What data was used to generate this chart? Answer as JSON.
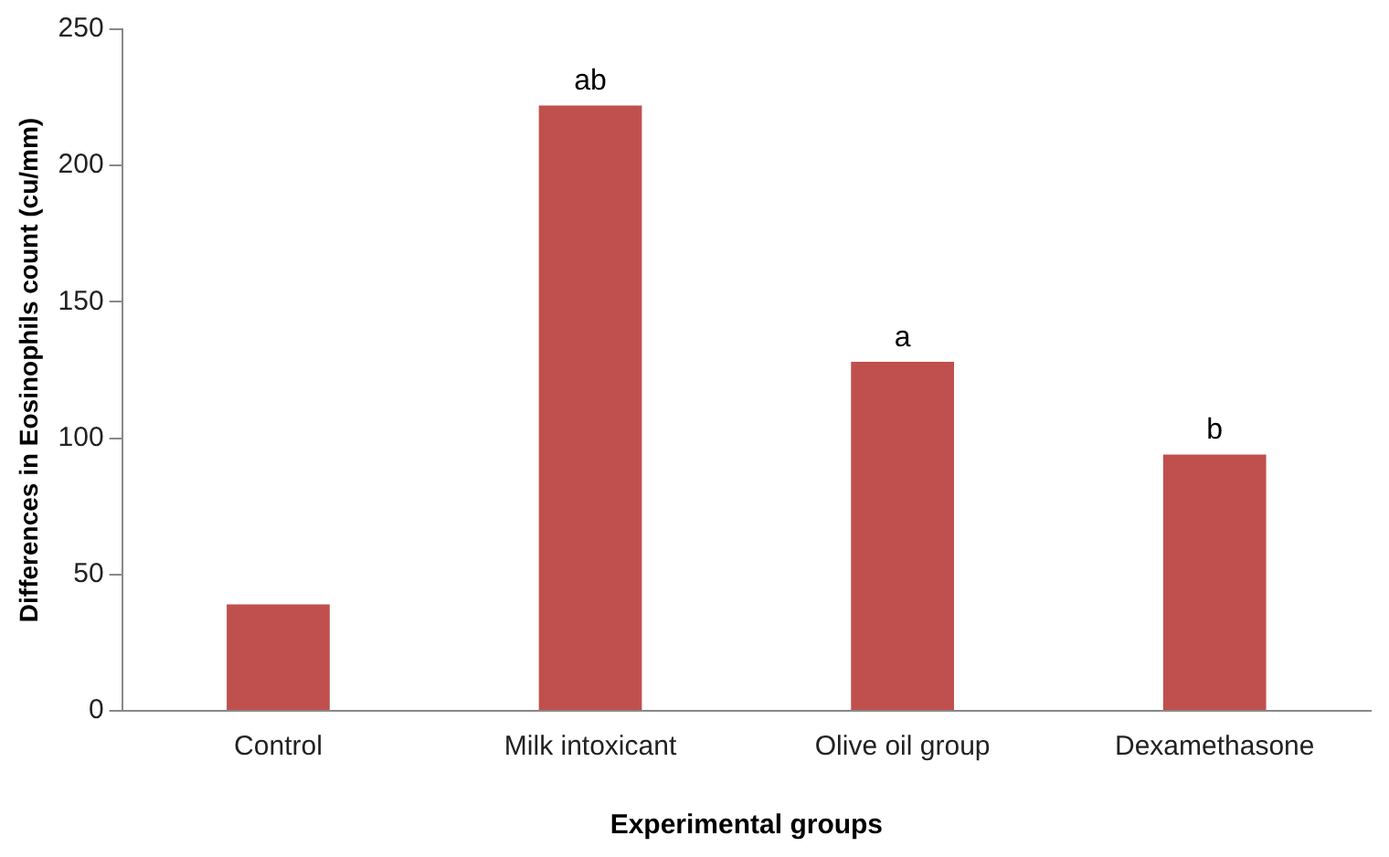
{
  "chart_data": {
    "type": "bar",
    "xlabel": "Experimental groups",
    "ylabel": "Differences in Eosinophils count (cu/mm)",
    "categories": [
      "Control",
      "Milk intoxicant",
      "Olive oil group",
      "Dexamethasone"
    ],
    "values": [
      39,
      222,
      128,
      94
    ],
    "color": "#c0504d",
    "ylim": [
      0,
      250
    ],
    "yticks": [
      0,
      50,
      100,
      150,
      200,
      250
    ],
    "grid": false,
    "legend": false,
    "annotations": [
      {
        "text": "ab",
        "x": "Milk intoxicant",
        "y": 222
      },
      {
        "text": "a",
        "x": "Olive oil group",
        "y": 128
      },
      {
        "text": "b",
        "x": "Dexamethasone",
        "y": 94
      }
    ]
  }
}
